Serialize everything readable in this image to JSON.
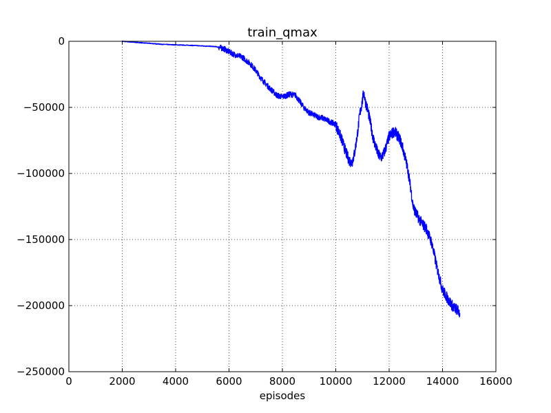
{
  "chart_data": {
    "type": "line",
    "title": "train_qmax",
    "xlabel": "episodes",
    "ylabel": "",
    "xlim": [
      0,
      16000
    ],
    "ylim": [
      -250000,
      0
    ],
    "xticks": [
      0,
      2000,
      4000,
      6000,
      8000,
      10000,
      12000,
      14000,
      16000
    ],
    "yticks": [
      0,
      -50000,
      -100000,
      -150000,
      -200000,
      -250000
    ],
    "xtick_labels": [
      "0",
      "2000",
      "4000",
      "6000",
      "8000",
      "10000",
      "12000",
      "14000",
      "16000"
    ],
    "ytick_labels": [
      "0",
      "−50000",
      "−100000",
      "−150000",
      "−200000",
      "−250000"
    ],
    "grid": true,
    "series": [
      {
        "color": "#0000ff",
        "x": [
          2000,
          2500,
          3000,
          3500,
          4000,
          4500,
          5000,
          5500,
          5800,
          6000,
          6200,
          6500,
          6800,
          7000,
          7200,
          7500,
          7800,
          8000,
          8300,
          8500,
          8800,
          9000,
          9300,
          9500,
          9800,
          10000,
          10200,
          10400,
          10500,
          10600,
          10700,
          10800,
          10900,
          11000,
          11050,
          11100,
          11200,
          11300,
          11400,
          11500,
          11600,
          11700,
          11800,
          11900,
          12000,
          12100,
          12200,
          12300,
          12400,
          12500,
          12600,
          12700,
          12800,
          12900,
          13000,
          13200,
          13400,
          13600,
          13800,
          14000,
          14200,
          14400,
          14600,
          14650
        ],
        "y": [
          0,
          -800,
          -1500,
          -2300,
          -2700,
          -3000,
          -3500,
          -4000,
          -5500,
          -8000,
          -10000,
          -12000,
          -17000,
          -22000,
          -28000,
          -35000,
          -41000,
          -42000,
          -40000,
          -41000,
          -50000,
          -54000,
          -57000,
          -58000,
          -61000,
          -63000,
          -73000,
          -85000,
          -90000,
          -92000,
          -85000,
          -72000,
          -55000,
          -45000,
          -38000,
          -45000,
          -52000,
          -62000,
          -73000,
          -80000,
          -86000,
          -88000,
          -85000,
          -79000,
          -72000,
          -70000,
          -68000,
          -71000,
          -74000,
          -80000,
          -88000,
          -97000,
          -110000,
          -125000,
          -130000,
          -137000,
          -142000,
          -153000,
          -172000,
          -188000,
          -195000,
          -201000,
          -204000,
          -206000
        ]
      }
    ]
  }
}
